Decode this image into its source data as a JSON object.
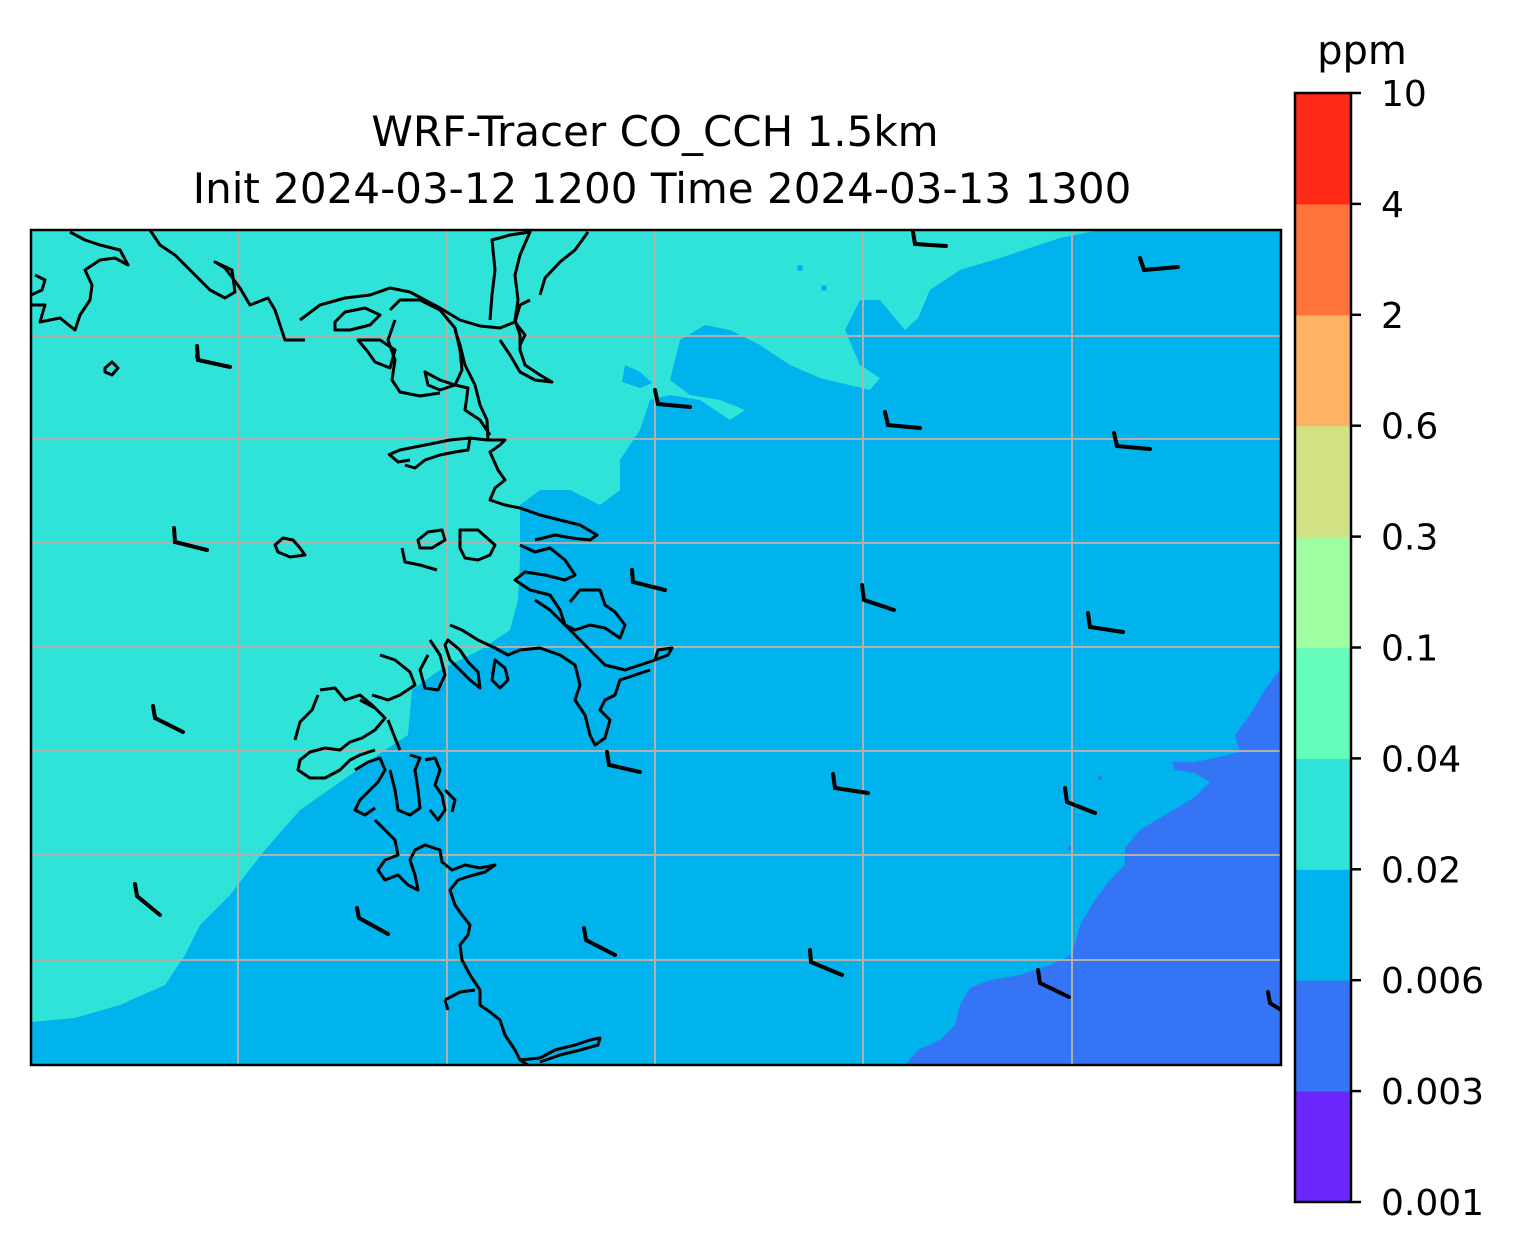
{
  "title": {
    "line1": "WRF-Tracer CO_CCH 1.5km",
    "line2": "Init 2024-03-12 1200 Time 2024-03-13 1300"
  },
  "colorbar": {
    "unit": "ppm",
    "levels": [
      "0.001",
      "0.003",
      "0.006",
      "0.02",
      "0.04",
      "0.1",
      "0.3",
      "0.6",
      "2",
      "4",
      "10"
    ],
    "colors": [
      "#6a26fb",
      "#3575f5",
      "#00b3ec",
      "#30e3d8",
      "#66fcbb",
      "#9ffea2",
      "#d1e284",
      "#fdb264",
      "#fe733c",
      "#ff2a17"
    ]
  },
  "map": {
    "ocean_fill": "#00b3ec",
    "coastal_fill": "#30e3d8",
    "offshore_fill": "#3575f5",
    "coastline_color": "#000000",
    "gridline_color": "#b0b0b0",
    "wind_barbs_present": true
  }
}
